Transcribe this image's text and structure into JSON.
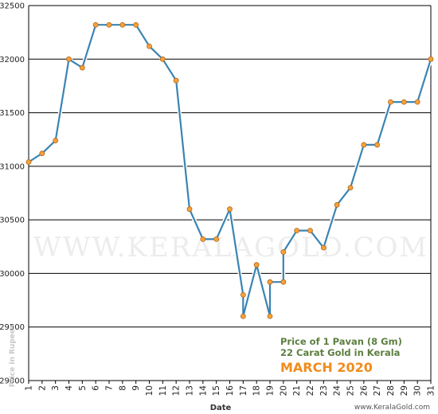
{
  "chart_data": {
    "type": "line",
    "xlabel": "Date",
    "ylabel": "Price in Rupees",
    "ylim": [
      29000,
      32500
    ],
    "yticks": [
      29000,
      29500,
      30000,
      30500,
      31000,
      31500,
      32000,
      32500
    ],
    "grid": "horizontal",
    "x": [
      1,
      2,
      3,
      4,
      5,
      6,
      7,
      8,
      9,
      10,
      11,
      12,
      13,
      14,
      15,
      16,
      17,
      17,
      18,
      19,
      19,
      20,
      20,
      21,
      22,
      23,
      24,
      25,
      26,
      27,
      28,
      29,
      30,
      31
    ],
    "values": [
      31040,
      31120,
      31240,
      32000,
      31920,
      32320,
      32320,
      32320,
      32320,
      32120,
      32000,
      31800,
      30600,
      30320,
      30320,
      30600,
      29800,
      29600,
      30080,
      29600,
      29920,
      29920,
      30200,
      30400,
      30400,
      30240,
      30640,
      30800,
      31200,
      31200,
      31600,
      31600,
      31600,
      32000
    ],
    "annotations": [
      "Price of 1 Pavan (8 Gm)",
      "22 Carat Gold in Kerala",
      "MARCH 2020"
    ],
    "series_color": "#3a84b3",
    "marker_color": "#f5a23a"
  },
  "watermark": "WWW.KERALAGOLD.COM",
  "credit": "www.KeralaGold.com"
}
